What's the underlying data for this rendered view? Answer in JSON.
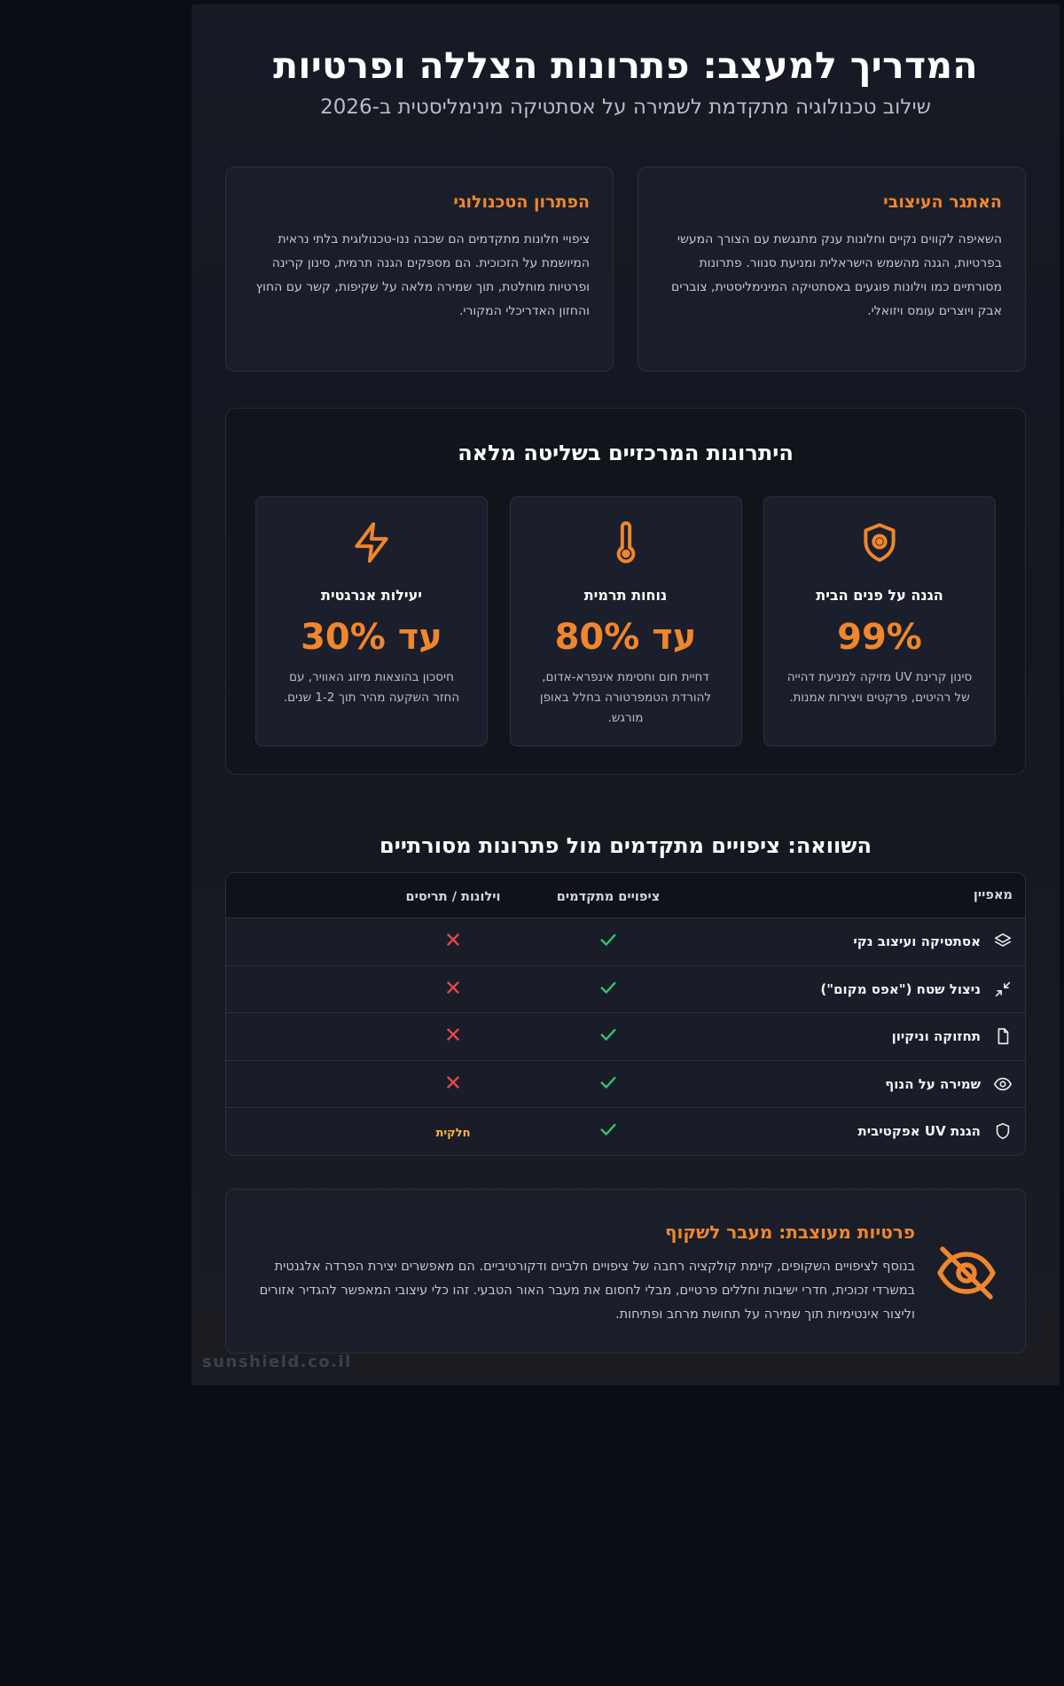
{
  "header": {
    "title": "המדריך למעצב: פתרונות הצללה ופרטיות",
    "subtitle": "שילוב טכנולוגיה מתקדמת לשמירה על אסתטיקה מינימליסטית ב-2026"
  },
  "intro_cards": [
    {
      "title": "האתגר העיצובי",
      "text": "השאיפה לקווים נקיים וחלונות ענק מתנגשת עם הצורך המעשי בפרטיות, הגנה מהשמש הישראלית ומניעת סנוור. פתרונות מסורתיים כמו וילונות פוגעים באסתטיקה המינימליסטית, צוברים אבק ויוצרים עומס ויזואלי."
    },
    {
      "title": "הפתרון הטכנולוגי",
      "text": "ציפויי חלונות מתקדמים הם שכבה ננו-טכנולוגית בלתי נראית המיושמת על הזכוכית. הם מספקים הגנה תרמית, סינון קרינה ופרטיות מוחלטת, תוך שמירה מלאה על שקיפות, קשר עם החוץ והחזון האדריכלי המקורי."
    }
  ],
  "advantages": {
    "title": "היתרונות המרכזיים בשליטה מלאה",
    "items": [
      {
        "icon": "shield-icon",
        "title": "הגנה על פנים הבית",
        "value": "99%",
        "text": "סינון קרינת UV מזיקה למניעת דהייה של רהיטים, פרקטים ויצירות אמנות."
      },
      {
        "icon": "thermometer-icon",
        "title": "נוחות תרמית",
        "value": "עד 80%",
        "text": "דחיית חום וחסימת אינפרא-אדום, להורדת הטמפרטורה בחלל באופן מורגש."
      },
      {
        "icon": "lightning-icon",
        "title": "יעילות אנרגטית",
        "value": "עד 30%",
        "text": "חיסכון בהוצאות מיזוג האוויר, עם החזר השקעה מהיר תוך 1-2 שנים."
      }
    ]
  },
  "comparison": {
    "title": "השוואה: ציפויים מתקדמים מול פתרונות מסורתיים",
    "headers": {
      "feature": "מאפיין",
      "advanced": "ציפויים מתקדמים",
      "traditional": "וילונות / תריסים"
    },
    "rows": [
      {
        "icon": "layers-icon",
        "feature": "אסתטיקה ועיצוב נקי",
        "advanced": "check",
        "traditional": "cross"
      },
      {
        "icon": "minimize-icon",
        "feature": "ניצול שטח (\"אפס מקום\")",
        "advanced": "check",
        "traditional": "cross"
      },
      {
        "icon": "file-icon",
        "feature": "תחזוקה וניקיון",
        "advanced": "check",
        "traditional": "cross"
      },
      {
        "icon": "eye-icon",
        "feature": "שמירה על הנוף",
        "advanced": "check",
        "traditional": "cross"
      },
      {
        "icon": "shield-outline-icon",
        "feature": "הגנת UV אפקטיבית",
        "advanced": "check",
        "traditional": "partial",
        "traditional_text": "חלקית"
      }
    ]
  },
  "privacy": {
    "title": "פרטיות מעוצבת: מעבר לשקוף",
    "text": "בנוסף לציפויים השקופים, קיימת קולקציה רחבה של ציפויים חלביים ודקורטיביים. הם מאפשרים יצירת הפרדה אלגנטית במשרדי זכוכית, חדרי ישיבות וחללים פרטיים, מבלי לחסום את מעבר האור הטבעי. זהו כלי עיצובי המאפשר להגדיר אזורים וליצור אינטימיות תוך שמירה על תחושת מרחב ופתיחות."
  },
  "footer": {
    "brand": "sunshield.co.il"
  },
  "colors": {
    "accent": "#f0862d",
    "check": "#2ec76b",
    "cross": "#e5484d",
    "partial": "#f5b731",
    "background": "#141720"
  }
}
